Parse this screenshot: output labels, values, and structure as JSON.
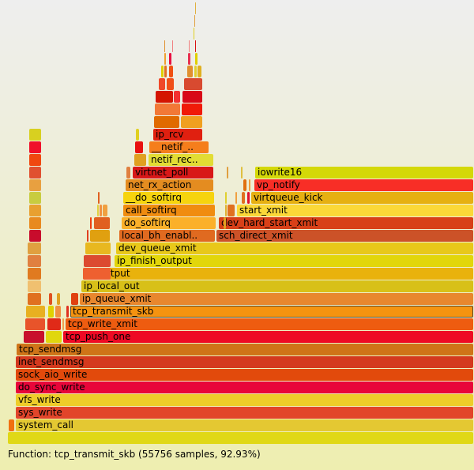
{
  "frames": [
    {
      "label": "",
      "color": "#e0d816"
    },
    {
      "label": "system_call",
      "color": "#e4c832"
    },
    {
      "label": "sys_write",
      "color": "#e2452a"
    },
    {
      "label": "vfs_write",
      "color": "#eecd2a"
    },
    {
      "label": "do_sync_write",
      "color": "#e8063a"
    },
    {
      "label": "sock_aio_write",
      "color": "#e24a0c"
    },
    {
      "label": "inet_sendmsg",
      "color": "#d4391e"
    },
    {
      "label": "tcp_sendmsg",
      "color": "#cf7418"
    },
    {
      "label": "tcp_push_one",
      "color": "#ee0a24"
    },
    {
      "label": "tcp_write_xmit",
      "color": "#ee5c10"
    },
    {
      "label": "tcp_transmit_skb",
      "color": "#f59310"
    },
    {
      "label": "ip_queue_xmit",
      "color": "#e8872e"
    },
    {
      "label": "ip_local_out",
      "color": "#d8c018"
    },
    {
      "label": "ip_output",
      "color": "#e9b20c"
    },
    {
      "label": "ip_finish_output",
      "color": "#e2d60a"
    },
    {
      "label": "dev_queue_xmit",
      "color": "#e8c81a"
    },
    {
      "label": "local_bh_enabl..",
      "color": "#e06a20"
    },
    {
      "label": "sch_direct_xmit",
      "color": "#cc5228"
    },
    {
      "label": "do_softirq",
      "color": "#fbb02a"
    },
    {
      "label": "dev_hard_start_xmit",
      "color": "#d84018"
    },
    {
      "label": "call_softirq",
      "color": "#f08c10"
    },
    {
      "label": "start_xmit",
      "color": "#fbd838"
    },
    {
      "label": "__do_softirq",
      "color": "#f6d40e"
    },
    {
      "label": "virtqueue_kick",
      "color": "#e6b012"
    },
    {
      "label": "net_rx_action",
      "color": "#e48c20"
    },
    {
      "label": "vp_notify",
      "color": "#f82e26"
    },
    {
      "label": "virtnet_poll",
      "color": "#d81818"
    },
    {
      "label": "iowrite16",
      "color": "#d4d808"
    },
    {
      "label": "netif_rec..",
      "color": "#e2dc34"
    },
    {
      "label": "__netif_..",
      "color": "#f57e1c"
    },
    {
      "label": "ip_rcv",
      "color": "#e02010"
    }
  ],
  "selected": "tcp_transmit_skb",
  "status": {
    "text": "Function: tcp_transmit_skb (55756 samples, 92.93%)"
  }
}
